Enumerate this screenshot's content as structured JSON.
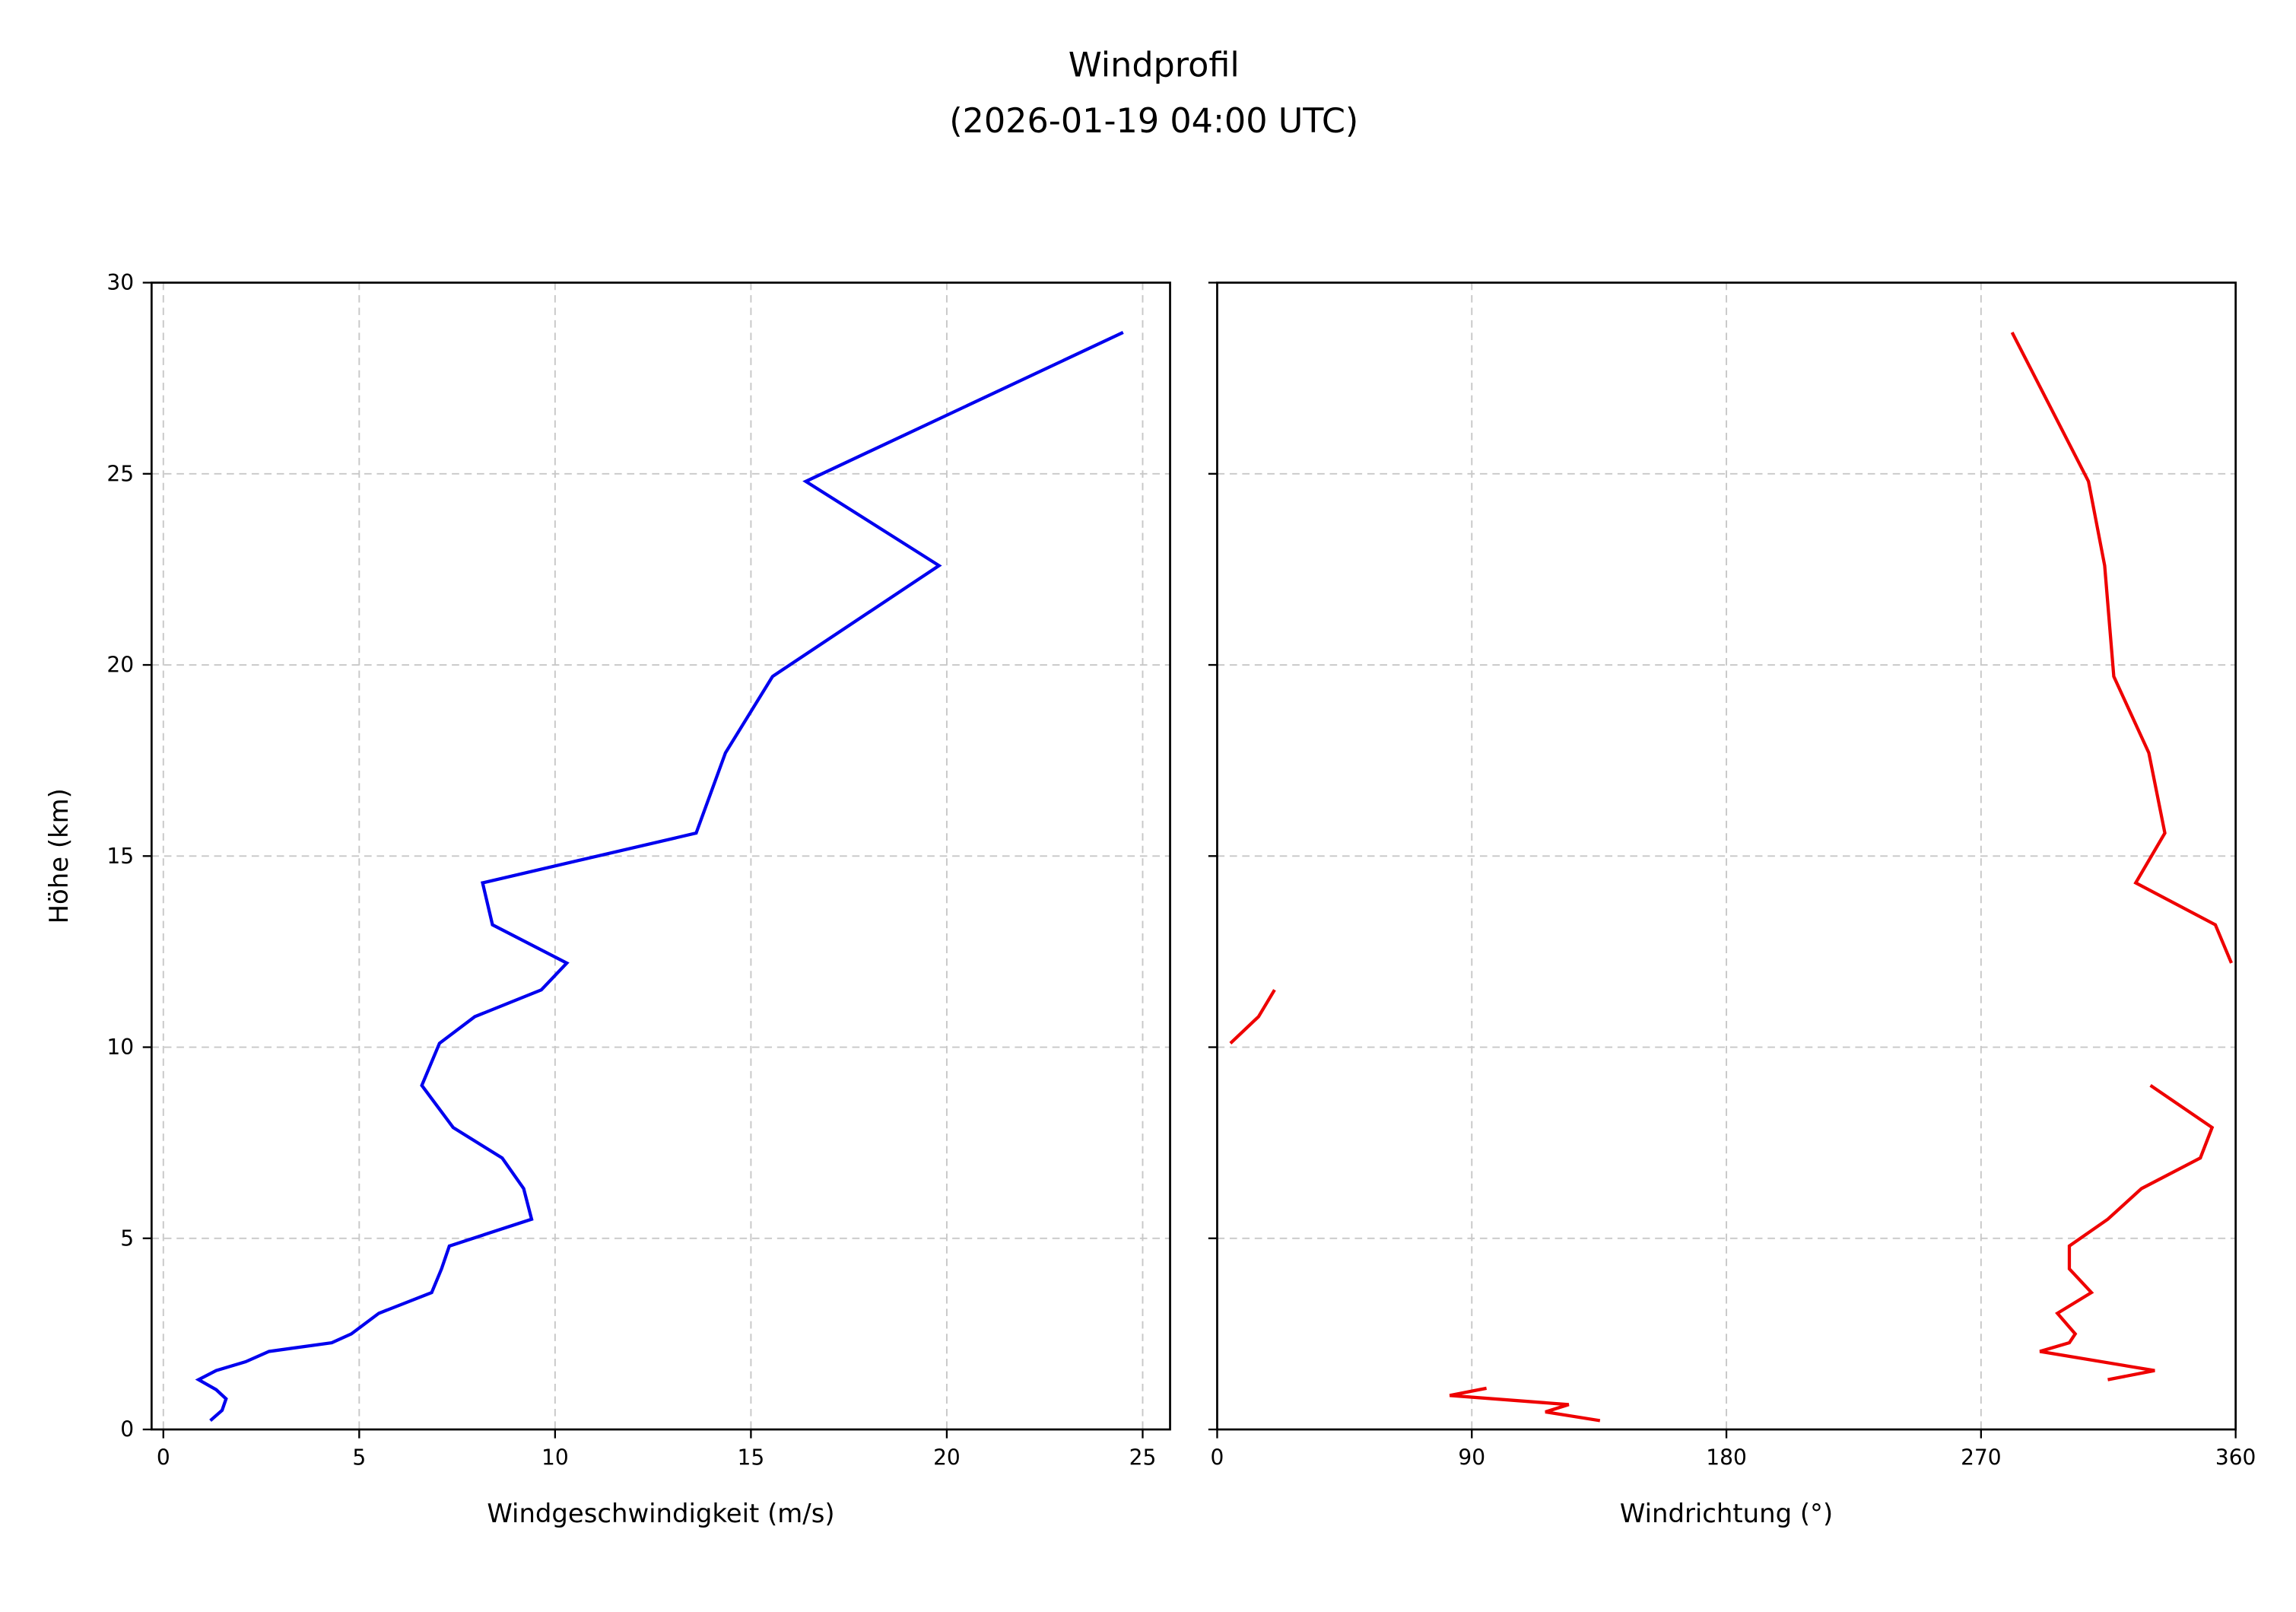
{
  "title_line1": "Windprofil",
  "title_line2": "(2026-01-19 04:00 UTC)",
  "chart_data": [
    {
      "type": "line",
      "panel": "left",
      "title": "",
      "xlabel": "Windgeschwindigkeit (m/s)",
      "ylabel": "Höhe (km)",
      "xlim": [
        -0.3,
        25.7
      ],
      "ylim": [
        0,
        30
      ],
      "xticks": [
        0,
        5,
        10,
        15,
        20,
        25
      ],
      "yticks": [
        0,
        5,
        10,
        15,
        20,
        25,
        30
      ],
      "grid": true,
      "color": "#0000ee",
      "series": [
        {
          "name": "Windgeschwindigkeit",
          "x": [
            1.2,
            1.5,
            1.6,
            1.35,
            0.9,
            1.35,
            2.1,
            2.7,
            4.3,
            4.8,
            5.5,
            6.85,
            7.1,
            7.3,
            9.4,
            9.2,
            8.65,
            7.4,
            6.6,
            7.05,
            7.95,
            9.65,
            10.3,
            8.4,
            8.15,
            13.6,
            14.35,
            15.55,
            19.8,
            16.4,
            24.5
          ],
          "y": [
            0.23,
            0.5,
            0.8,
            1.04,
            1.3,
            1.54,
            1.77,
            2.04,
            2.27,
            2.5,
            3.04,
            3.58,
            4.2,
            4.8,
            5.5,
            6.3,
            7.1,
            7.9,
            9.0,
            10.1,
            10.8,
            11.5,
            12.2,
            13.2,
            14.3,
            15.6,
            17.7,
            19.7,
            22.6,
            24.8,
            28.7
          ]
        }
      ]
    },
    {
      "type": "line",
      "panel": "right",
      "title": "",
      "xlabel": "Windrichtung (°)",
      "ylabel": "",
      "xlim": [
        0,
        360
      ],
      "ylim": [
        0,
        30
      ],
      "xticks": [
        0,
        90,
        180,
        270,
        360
      ],
      "yticks": [
        0,
        5,
        10,
        15,
        20,
        25,
        30
      ],
      "grid": true,
      "color": "#ee0000",
      "series": [
        {
          "name": "Windrichtung",
          "segments": [
            {
              "x": [
                135.3,
                116,
                124.3,
                82.2,
                95.2
              ],
              "y": [
                0.23,
                0.46,
                0.65,
                0.89,
                1.08
              ]
            },
            {
              "x": [
                314.8,
                331.4,
                290.8,
                301.2,
                303.3,
                297,
                309,
                301.2,
                301.2,
                314.8,
                326.7,
                347.5,
                351.7,
                329.9
              ],
              "y": [
                1.3,
                1.54,
                2.04,
                2.27,
                2.5,
                3.04,
                3.58,
                4.2,
                4.8,
                5.5,
                6.3,
                7.1,
                7.9,
                9.0
              ]
            },
            {
              "x": [
                4.7,
                14.6,
                20.3
              ],
              "y": [
                10.1,
                10.8,
                11.5
              ]
            },
            {
              "x": [
                358.5,
                352.8,
                324.7,
                335,
                329.3,
                316.9,
                313.7,
                308,
                281
              ],
              "y": [
                12.2,
                13.2,
                14.3,
                15.6,
                17.7,
                19.7,
                22.6,
                24.8,
                28.7
              ]
            }
          ]
        }
      ]
    }
  ]
}
